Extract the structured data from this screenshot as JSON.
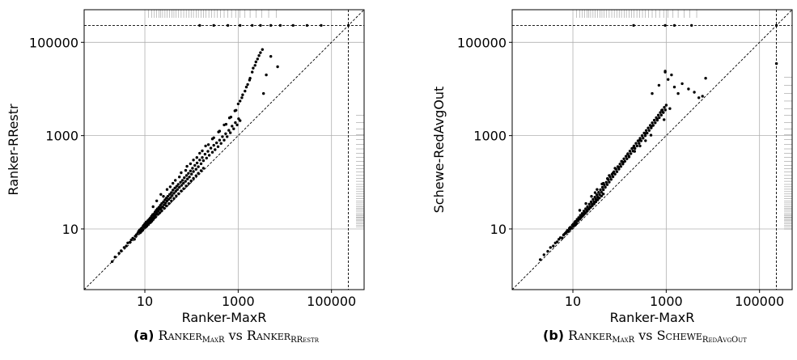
{
  "chart_data": [
    {
      "type": "scatter",
      "panel": "(a)",
      "xlabel": "Ranker-MaxR",
      "ylabel": "Ranker-RRestr",
      "scale": "log",
      "xlim": [
        0.5,
        500000
      ],
      "ylim": [
        0.5,
        500000
      ],
      "xticks": [
        10,
        1000,
        100000
      ],
      "xtick_labels": [
        "10",
        "1000",
        "100000"
      ],
      "yticks": [
        10,
        1000,
        100000
      ],
      "ytick_labels": [
        "10",
        "1000",
        "100000"
      ],
      "timeout": 230000,
      "grid": true,
      "diagonal": true,
      "caption": {
        "tag": "(a)",
        "left_main": "Ranker",
        "left_sub": "MaxR",
        "vs": "vs",
        "right_main": "Ranker",
        "right_sub": "RRestr"
      }
    },
    {
      "type": "scatter",
      "panel": "(b)",
      "xlabel": "Ranker-MaxR",
      "ylabel": "Schewe-RedAvgOut",
      "scale": "log",
      "xlim": [
        0.5,
        500000
      ],
      "ylim": [
        0.5,
        500000
      ],
      "xticks": [
        10,
        1000,
        100000
      ],
      "xtick_labels": [
        "10",
        "1000",
        "100000"
      ],
      "yticks": [
        10,
        1000,
        100000
      ],
      "ytick_labels": [
        "10",
        "1000",
        "100000"
      ],
      "timeout": 230000,
      "grid": true,
      "diagonal": true,
      "caption": {
        "tag": "(b)",
        "left_main": "Ranker",
        "left_sub": "MaxR",
        "vs": "vs",
        "right_main": "Schewe",
        "right_sub": "RedAvgOut"
      }
    }
  ],
  "points_a": [
    [
      2,
      2
    ],
    [
      2.3,
      2.5
    ],
    [
      2.8,
      3
    ],
    [
      3.1,
      3.4
    ],
    [
      3.6,
      4
    ],
    [
      4,
      4.3
    ],
    [
      4.3,
      5
    ],
    [
      4.8,
      5.2
    ],
    [
      5.1,
      5.8
    ],
    [
      5.5,
      6.3
    ],
    [
      6,
      6
    ],
    [
      6.2,
      7
    ],
    [
      6.6,
      7.5
    ],
    [
      7,
      8
    ],
    [
      7.3,
      8.8
    ],
    [
      7.7,
      9.5
    ],
    [
      8,
      8.3
    ],
    [
      8.2,
      10
    ],
    [
      8.6,
      10.5
    ],
    [
      9,
      9.7
    ],
    [
      9.2,
      11.5
    ],
    [
      9.5,
      12
    ],
    [
      9.8,
      10.8
    ],
    [
      10,
      13
    ],
    [
      10.4,
      12.3
    ],
    [
      10.7,
      14
    ],
    [
      11,
      11.5
    ],
    [
      11.3,
      13.5
    ],
    [
      11.6,
      15
    ],
    [
      12,
      13
    ],
    [
      12.3,
      16
    ],
    [
      12.7,
      14.5
    ],
    [
      13,
      17
    ],
    [
      13.4,
      15.5
    ],
    [
      13.8,
      18.5
    ],
    [
      14.2,
      16.5
    ],
    [
      14.6,
      20
    ],
    [
      15,
      17.5
    ],
    [
      15.5,
      21
    ],
    [
      16,
      19
    ],
    [
      16.5,
      23
    ],
    [
      17,
      20
    ],
    [
      17.5,
      25
    ],
    [
      18,
      22
    ],
    [
      18.6,
      27
    ],
    [
      19.2,
      24
    ],
    [
      20,
      29
    ],
    [
      20.7,
      26
    ],
    [
      21.5,
      32
    ],
    [
      22.3,
      28
    ],
    [
      23,
      35
    ],
    [
      24,
      30
    ],
    [
      25,
      38
    ],
    [
      26,
      33
    ],
    [
      27,
      42
    ],
    [
      28,
      36
    ],
    [
      29,
      46
    ],
    [
      30,
      40
    ],
    [
      31,
      50
    ],
    [
      32.5,
      43
    ],
    [
      34,
      55
    ],
    [
      35.5,
      47
    ],
    [
      37,
      60
    ],
    [
      38.5,
      52
    ],
    [
      40,
      68
    ],
    [
      42,
      58
    ],
    [
      44,
      75
    ],
    [
      46,
      64
    ],
    [
      48,
      82
    ],
    [
      50,
      70
    ],
    [
      52,
      90
    ],
    [
      55,
      78
    ],
    [
      58,
      100
    ],
    [
      61,
      86
    ],
    [
      64,
      110
    ],
    [
      67,
      95
    ],
    [
      70,
      125
    ],
    [
      74,
      105
    ],
    [
      78,
      140
    ],
    [
      82,
      118
    ],
    [
      86,
      155
    ],
    [
      90,
      130
    ],
    [
      95,
      175
    ],
    [
      100,
      150
    ],
    [
      105,
      200
    ],
    [
      110,
      170
    ],
    [
      118,
      230
    ],
    [
      125,
      190
    ],
    [
      132,
      260
    ],
    [
      140,
      215
    ],
    [
      150,
      300
    ],
    [
      160,
      250
    ],
    [
      170,
      340
    ],
    [
      180,
      290
    ],
    [
      195,
      400
    ],
    [
      210,
      330
    ],
    [
      225,
      460
    ],
    [
      240,
      380
    ],
    [
      260,
      540
    ],
    [
      280,
      440
    ],
    [
      300,
      620
    ],
    [
      320,
      500
    ],
    [
      345,
      700
    ],
    [
      370,
      580
    ],
    [
      400,
      800
    ],
    [
      430,
      680
    ],
    [
      460,
      950
    ],
    [
      500,
      800
    ],
    [
      540,
      1100
    ],
    [
      580,
      950
    ],
    [
      630,
      1300
    ],
    [
      680,
      1150
    ],
    [
      740,
      1600
    ],
    [
      800,
      1400
    ],
    [
      870,
      1900
    ],
    [
      950,
      1700
    ],
    [
      1020,
      2300
    ],
    [
      1100,
      2100
    ],
    [
      25,
      50
    ],
    [
      35,
      80
    ],
    [
      45,
      110
    ],
    [
      60,
      160
    ],
    [
      80,
      220
    ],
    [
      110,
      300
    ],
    [
      150,
      420
    ],
    [
      200,
      600
    ],
    [
      280,
      850
    ],
    [
      380,
      1200
    ],
    [
      500,
      1700
    ],
    [
      650,
      2400
    ],
    [
      850,
      3400
    ],
    [
      1000,
      4800
    ],
    [
      1200,
      6500
    ],
    [
      1400,
      9000
    ],
    [
      1600,
      12500
    ],
    [
      1800,
      17000
    ],
    [
      2000,
      23000
    ],
    [
      2300,
      32000
    ],
    [
      2600,
      44000
    ],
    [
      3000,
      60000
    ],
    [
      3500,
      8000
    ],
    [
      4000,
      20000
    ],
    [
      5000,
      50000
    ],
    [
      7000,
      30000
    ],
    [
      15,
      30
    ],
    [
      18,
      40
    ],
    [
      22,
      55
    ],
    [
      30,
      70
    ],
    [
      40,
      95
    ],
    [
      55,
      130
    ],
    [
      75,
      180
    ],
    [
      95,
      250
    ],
    [
      130,
      340
    ],
    [
      170,
      470
    ],
    [
      230,
      640
    ],
    [
      300,
      900
    ],
    [
      400,
      1250
    ],
    [
      550,
      1750
    ],
    [
      700,
      2500
    ],
    [
      900,
      3500
    ],
    [
      12,
      12.5
    ],
    [
      13,
      14
    ],
    [
      14,
      14.6
    ],
    [
      15,
      15.8
    ],
    [
      16,
      17.2
    ],
    [
      17,
      18
    ],
    [
      19,
      20.5
    ],
    [
      21,
      22.3
    ],
    [
      23,
      24.5
    ],
    [
      26,
      27.5
    ],
    [
      29,
      31
    ],
    [
      33,
      35
    ],
    [
      37,
      40
    ],
    [
      42,
      45
    ],
    [
      47,
      51
    ],
    [
      53,
      57
    ],
    [
      60,
      65
    ],
    [
      68,
      73
    ],
    [
      77,
      83
    ],
    [
      87,
      94
    ],
    [
      98,
      107
    ],
    [
      110,
      121
    ],
    [
      125,
      138
    ],
    [
      140,
      156
    ],
    [
      160,
      178
    ],
    [
      180,
      200
    ],
    [
      9,
      9.4
    ],
    [
      8.5,
      8.9
    ],
    [
      10.5,
      11
    ],
    [
      11.8,
      12.4
    ],
    [
      13.2,
      13.7
    ],
    [
      1100,
      5500
    ],
    [
      1250,
      7500
    ],
    [
      1500,
      11000
    ],
    [
      1750,
      15500
    ],
    [
      2100,
      28000
    ],
    [
      2400,
      38000
    ],
    [
      2800,
      52000
    ],
    [
      3300,
      70000
    ],
    [
      150,
      230000
    ],
    [
      300,
      230000
    ],
    [
      600,
      230000
    ],
    [
      1100,
      230000
    ],
    [
      2000,
      230000
    ],
    [
      3000,
      230000
    ],
    [
      5000,
      230000
    ],
    [
      8000,
      230000
    ],
    [
      15000,
      230000
    ],
    [
      30000,
      230000
    ],
    [
      60000,
      230000
    ],
    [
      230000,
      230000
    ]
  ],
  "points_b": [
    [
      2,
      2.2
    ],
    [
      2.4,
      2.8
    ],
    [
      2.9,
      3.3
    ],
    [
      3.3,
      4
    ],
    [
      3.8,
      4.3
    ],
    [
      4.2,
      5
    ],
    [
      4.6,
      5.3
    ],
    [
      5,
      6
    ],
    [
      5.4,
      6.5
    ],
    [
      5.9,
      6.4
    ],
    [
      6.3,
      7.4
    ],
    [
      6.8,
      8
    ],
    [
      7.2,
      8.5
    ],
    [
      7.6,
      9.3
    ],
    [
      8,
      8.8
    ],
    [
      8.4,
      10.3
    ],
    [
      8.8,
      10.8
    ],
    [
      9.3,
      10.5
    ],
    [
      9.7,
      12
    ],
    [
      10.1,
      12.6
    ],
    [
      10.5,
      11.8
    ],
    [
      10.9,
      13.8
    ],
    [
      11.3,
      14.5
    ],
    [
      11.8,
      13.5
    ],
    [
      12.3,
      16
    ],
    [
      12.8,
      15
    ],
    [
      13.3,
      17.5
    ],
    [
      13.9,
      16.6
    ],
    [
      14.5,
      19.5
    ],
    [
      15.1,
      18
    ],
    [
      15.8,
      21.5
    ],
    [
      16.5,
      20
    ],
    [
      17.2,
      24
    ],
    [
      18,
      22
    ],
    [
      18.8,
      27
    ],
    [
      19.7,
      24.5
    ],
    [
      20.6,
      30
    ],
    [
      21.5,
      27
    ],
    [
      22.5,
      34
    ],
    [
      23.5,
      30
    ],
    [
      24.6,
      38
    ],
    [
      25.7,
      34
    ],
    [
      27,
      43
    ],
    [
      28.3,
      38
    ],
    [
      29.6,
      48
    ],
    [
      31,
      43
    ],
    [
      32.5,
      54
    ],
    [
      34,
      48
    ],
    [
      35.6,
      61
    ],
    [
      37.3,
      54
    ],
    [
      39,
      69
    ],
    [
      41,
      61
    ],
    [
      43,
      78
    ],
    [
      45,
      69
    ],
    [
      47.3,
      88
    ],
    [
      49.6,
      78
    ],
    [
      52,
      100
    ],
    [
      54.6,
      89
    ],
    [
      57.3,
      114
    ],
    [
      60,
      101
    ],
    [
      63,
      130
    ],
    [
      66,
      115
    ],
    [
      69,
      148
    ],
    [
      72.5,
      131
    ],
    [
      76,
      168
    ],
    [
      80,
      149
    ],
    [
      84,
      191
    ],
    [
      88,
      169
    ],
    [
      92,
      217
    ],
    [
      97,
      192
    ],
    [
      102,
      246
    ],
    [
      107,
      218
    ],
    [
      112,
      280
    ],
    [
      118,
      247
    ],
    [
      124,
      318
    ],
    [
      130,
      281
    ],
    [
      137,
      361
    ],
    [
      144,
      319
    ],
    [
      151,
      410
    ],
    [
      159,
      362
    ],
    [
      167,
      466
    ],
    [
      175,
      411
    ],
    [
      184,
      529
    ],
    [
      194,
      467
    ],
    [
      204,
      601
    ],
    [
      214,
      530
    ],
    [
      225,
      682
    ],
    [
      237,
      602
    ],
    [
      249,
      774
    ],
    [
      262,
      683
    ],
    [
      276,
      879
    ],
    [
      290,
      775
    ],
    [
      305,
      998
    ],
    [
      320,
      880
    ],
    [
      337,
      1133
    ],
    [
      354,
      999
    ],
    [
      372,
      1286
    ],
    [
      391,
      1134
    ],
    [
      411,
      1460
    ],
    [
      432,
      1287
    ],
    [
      454,
      1658
    ],
    [
      477,
      1461
    ],
    [
      501,
      1882
    ],
    [
      527,
      1659
    ],
    [
      554,
      2137
    ],
    [
      582,
      1883
    ],
    [
      612,
      2426
    ],
    [
      643,
      2138
    ],
    [
      676,
      2754
    ],
    [
      711,
      2427
    ],
    [
      747,
      3127
    ],
    [
      785,
      2755
    ],
    [
      825,
      3550
    ],
    [
      867,
      3128
    ],
    [
      911,
      4031
    ],
    [
      958,
      3551
    ],
    [
      30,
      60
    ],
    [
      45,
      95
    ],
    [
      60,
      140
    ],
    [
      80,
      200
    ],
    [
      110,
      280
    ],
    [
      150,
      400
    ],
    [
      200,
      560
    ],
    [
      270,
      790
    ],
    [
      360,
      1120
    ],
    [
      480,
      1580
    ],
    [
      640,
      2230
    ],
    [
      860,
      3150
    ],
    [
      1000,
      4500
    ],
    [
      500,
      8000
    ],
    [
      700,
      12000
    ],
    [
      950,
      24000
    ],
    [
      950,
      23000
    ],
    [
      1100,
      16000
    ],
    [
      1300,
      20000
    ],
    [
      1500,
      11000
    ],
    [
      2200,
      13000
    ],
    [
      3000,
      10000
    ],
    [
      4000,
      8500
    ],
    [
      5000,
      6500
    ],
    [
      7000,
      17000
    ],
    [
      6000,
      7000
    ],
    [
      1800,
      8000
    ],
    [
      14,
      25
    ],
    [
      19,
      35
    ],
    [
      25,
      50
    ],
    [
      33,
      70
    ],
    [
      42,
      92
    ],
    [
      55,
      120
    ],
    [
      72,
      158
    ],
    [
      95,
      210
    ],
    [
      120,
      270
    ],
    [
      160,
      350
    ],
    [
      210,
      460
    ],
    [
      275,
      600
    ],
    [
      360,
      780
    ],
    [
      470,
      1020
    ],
    [
      12,
      13
    ],
    [
      13,
      15
    ],
    [
      14,
      16.3
    ],
    [
      15,
      17.5
    ],
    [
      16.2,
      19
    ],
    [
      17.4,
      20.5
    ],
    [
      18.8,
      22
    ],
    [
      20.3,
      24
    ],
    [
      22,
      26.5
    ],
    [
      24,
      29
    ],
    [
      26,
      31.5
    ],
    [
      28.5,
      34.5
    ],
    [
      31,
      38
    ],
    [
      34,
      42
    ],
    [
      37,
      46
    ],
    [
      41,
      51
    ],
    [
      45,
      56
    ],
    [
      9,
      10.2
    ],
    [
      8.6,
      9.8
    ],
    [
      10.3,
      11.4
    ],
    [
      11.2,
      12.2
    ],
    [
      7.1,
      8.2
    ],
    [
      6.5,
      7.6
    ],
    [
      800,
      3500
    ],
    [
      900,
      2200
    ],
    [
      1200,
      3800
    ],
    [
      200,
      230000
    ],
    [
      950,
      230000
    ],
    [
      1500,
      230000
    ],
    [
      3500,
      230000
    ],
    [
      230000,
      230000
    ],
    [
      230000,
      35000
    ]
  ],
  "rug_a": {
    "top": [
      12,
      14,
      16,
      18,
      20,
      22,
      24,
      27,
      30,
      34,
      38,
      42,
      47,
      53,
      60,
      68,
      77,
      87,
      98,
      110,
      125,
      140,
      160,
      180,
      205,
      235,
      270,
      310,
      360,
      420,
      500,
      600,
      720,
      880,
      1100,
      1400,
      1800,
      2400,
      3200,
      4500,
      6500
    ],
    "right": [
      11,
      12,
      13,
      14,
      15,
      16,
      17,
      18,
      19,
      20,
      22,
      24,
      26,
      28,
      30,
      33,
      36,
      40,
      45,
      50,
      56,
      63,
      71,
      80,
      90,
      105,
      120,
      140,
      165,
      195,
      230,
      280,
      340,
      420,
      520,
      650,
      820,
      1050,
      1400,
      1900,
      2700
    ]
  },
  "rug_b": {
    "top": [
      12,
      14,
      16,
      18,
      20,
      22,
      24,
      27,
      30,
      34,
      38,
      42,
      47,
      53,
      60,
      68,
      77,
      87,
      98,
      110,
      125,
      140,
      160,
      180,
      205,
      235,
      270,
      310,
      360,
      420,
      500,
      600,
      720,
      880,
      1100,
      1400,
      1800,
      2400,
      3200,
      4500
    ],
    "right": [
      10,
      11,
      12,
      13,
      14,
      15,
      16,
      17,
      18,
      19,
      20,
      22,
      24,
      26,
      28,
      30,
      33,
      36,
      40,
      45,
      50,
      56,
      63,
      71,
      80,
      90,
      105,
      120,
      140,
      165,
      195,
      230,
      280,
      340,
      420,
      520,
      650,
      820,
      1050,
      1400,
      1900,
      2700,
      3800,
      5500,
      8000,
      12000,
      18000
    ]
  }
}
